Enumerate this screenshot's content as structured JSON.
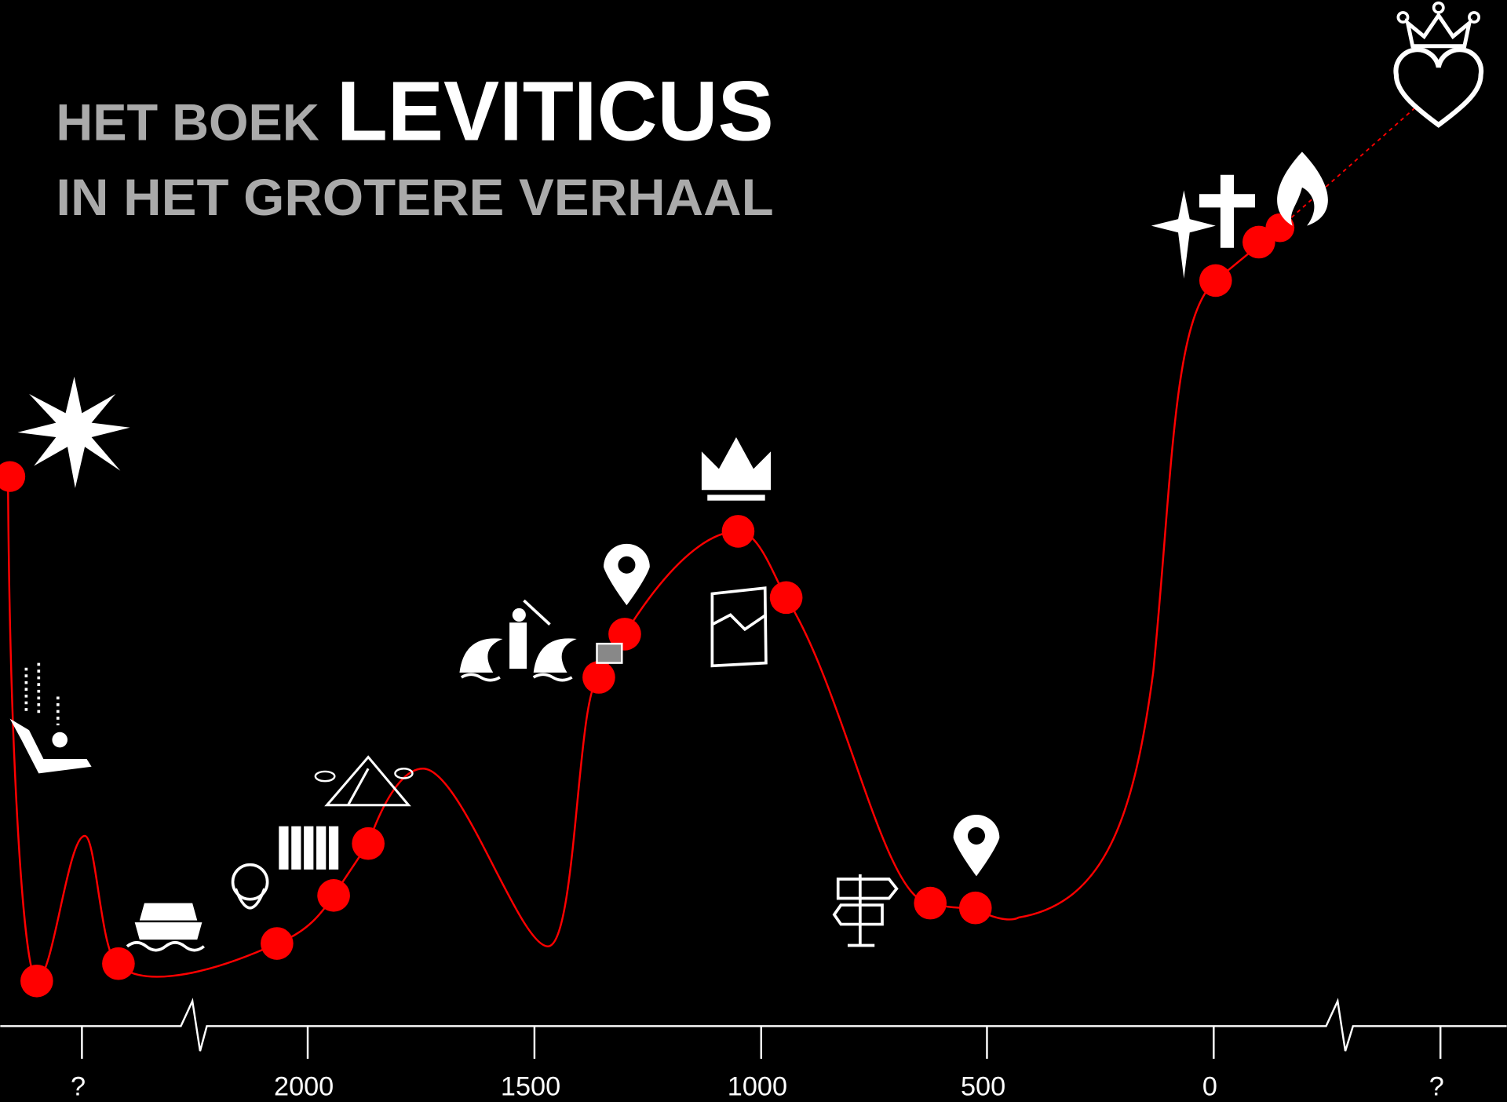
{
  "header": {
    "line1_prefix": "HET BOEK",
    "line1_main": "LEVITICUS",
    "line2": "IN HET GROTERE VERHAAL"
  },
  "axis": {
    "ticks": [
      "?",
      "2000",
      "1500",
      "1000",
      "500",
      "0",
      "?"
    ]
  }
}
